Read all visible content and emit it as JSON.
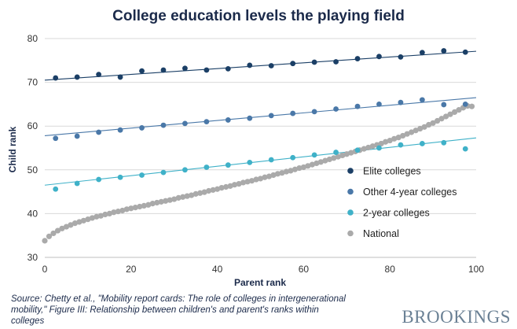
{
  "chart_data": {
    "type": "scatter",
    "title": "College education levels the playing field",
    "xlabel": "Parent rank",
    "ylabel": "Child rank",
    "xlim": [
      0,
      100
    ],
    "ylim": [
      30,
      80
    ],
    "xticks": [
      0,
      20,
      40,
      60,
      80,
      100
    ],
    "yticks": [
      30,
      40,
      50,
      60,
      70,
      80
    ],
    "series": [
      {
        "name": "Elite colleges",
        "color": "#1b3f66",
        "x": [
          2.5,
          7.5,
          12.5,
          17.5,
          22.5,
          27.5,
          32.5,
          37.5,
          42.5,
          47.5,
          52.5,
          57.5,
          62.5,
          67.5,
          72.5,
          77.5,
          82.5,
          87.5,
          92.5,
          97.5
        ],
        "y": [
          71.0,
          71.2,
          71.8,
          71.2,
          72.6,
          72.8,
          73.2,
          72.8,
          73.1,
          73.9,
          73.8,
          74.3,
          74.6,
          74.7,
          75.4,
          75.9,
          75.8,
          76.8,
          77.2,
          76.9
        ],
        "trend": [
          70.5,
          77.1
        ]
      },
      {
        "name": "Other 4-year colleges",
        "color": "#4a78a8",
        "x": [
          2.5,
          7.5,
          12.5,
          17.5,
          22.5,
          27.5,
          32.5,
          37.5,
          42.5,
          47.5,
          52.5,
          57.5,
          62.5,
          67.5,
          72.5,
          77.5,
          82.5,
          87.5,
          92.5,
          97.5
        ],
        "y": [
          57.2,
          57.7,
          58.6,
          59.1,
          59.6,
          60.2,
          60.6,
          61.0,
          61.4,
          61.8,
          62.4,
          62.9,
          63.3,
          63.9,
          64.5,
          65.0,
          65.4,
          66.0,
          64.9,
          65.0
        ],
        "trend": [
          57.8,
          66.5
        ]
      },
      {
        "name": "2-year colleges",
        "color": "#3fb1c8",
        "x": [
          2.5,
          7.5,
          12.5,
          17.5,
          22.5,
          27.5,
          32.5,
          37.5,
          42.5,
          47.5,
          52.5,
          57.5,
          62.5,
          67.5,
          72.5,
          77.5,
          82.5,
          87.5,
          92.5,
          97.5
        ],
        "y": [
          45.6,
          46.9,
          47.8,
          48.3,
          48.8,
          49.4,
          50.0,
          50.6,
          51.1,
          51.7,
          52.3,
          52.8,
          53.4,
          54.0,
          54.5,
          55.0,
          55.7,
          56.0,
          56.2,
          54.8
        ],
        "trend": [
          46.5,
          57.3
        ]
      },
      {
        "name": "National",
        "color": "#aaaaaa",
        "x": [
          0,
          1,
          2,
          3,
          4,
          5,
          6,
          7,
          8,
          9,
          10,
          11,
          12,
          13,
          14,
          15,
          16,
          17,
          18,
          19,
          20,
          21,
          22,
          23,
          24,
          25,
          26,
          27,
          28,
          29,
          30,
          31,
          32,
          33,
          34,
          35,
          36,
          37,
          38,
          39,
          40,
          41,
          42,
          43,
          44,
          45,
          46,
          47,
          48,
          49,
          50,
          51,
          52,
          53,
          54,
          55,
          56,
          57,
          58,
          59,
          60,
          61,
          62,
          63,
          64,
          65,
          66,
          67,
          68,
          69,
          70,
          71,
          72,
          73,
          74,
          75,
          76,
          77,
          78,
          79,
          80,
          81,
          82,
          83,
          84,
          85,
          86,
          87,
          88,
          89,
          90,
          91,
          92,
          93,
          94,
          95,
          96,
          97,
          98,
          99
        ],
        "y": [
          33.8,
          34.8,
          35.5,
          36.1,
          36.6,
          37.0,
          37.4,
          37.8,
          38.1,
          38.4,
          38.7,
          39.0,
          39.3,
          39.5,
          39.8,
          40.0,
          40.3,
          40.5,
          40.7,
          41.0,
          41.2,
          41.4,
          41.6,
          41.8,
          42.0,
          42.3,
          42.5,
          42.7,
          42.9,
          43.1,
          43.3,
          43.6,
          43.8,
          44.0,
          44.2,
          44.5,
          44.7,
          44.9,
          45.2,
          45.4,
          45.6,
          45.9,
          46.1,
          46.3,
          46.6,
          46.8,
          47.1,
          47.3,
          47.5,
          47.8,
          48.0,
          48.3,
          48.5,
          48.8,
          49.1,
          49.3,
          49.6,
          49.8,
          50.1,
          50.4,
          50.6,
          50.9,
          51.2,
          51.5,
          51.8,
          52.1,
          52.4,
          52.7,
          53.0,
          53.3,
          53.6,
          53.9,
          54.2,
          54.5,
          54.8,
          55.1,
          55.4,
          55.7,
          56.0,
          56.4,
          56.7,
          57.1,
          57.4,
          57.8,
          58.2,
          58.6,
          59.0,
          59.4,
          59.8,
          60.3,
          60.7,
          61.2,
          61.7,
          62.2,
          62.7,
          63.2,
          63.7,
          64.2,
          64.6,
          64.5
        ]
      }
    ],
    "legend": [
      "Elite colleges",
      "Other 4-year colleges",
      "2-year colleges",
      "National"
    ],
    "legend_position": "center-right"
  },
  "source": "Source: Chetty et al., \"Mobility report cards: The role of colleges in intergenerational mobility,\" Figure III: Relationship between children's and parent's ranks within colleges",
  "brand": "BROOKINGS"
}
